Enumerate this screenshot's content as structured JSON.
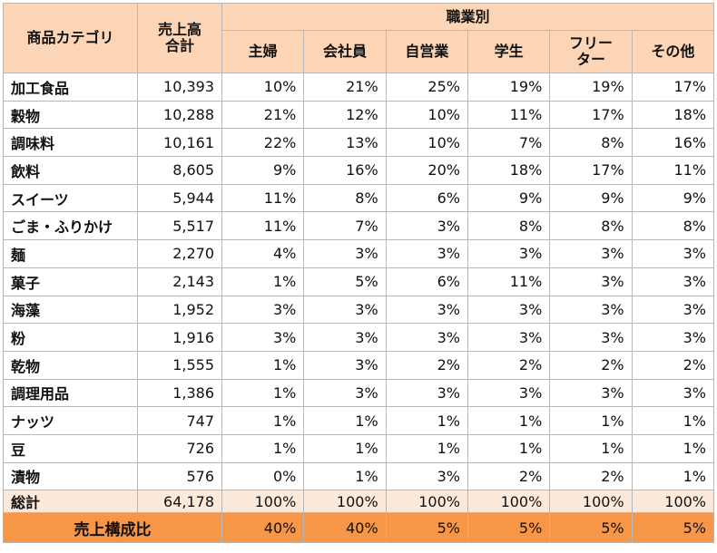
{
  "header": {
    "category_label": "商品カテゴリ",
    "total_label_line1": "売上高",
    "total_label_line2": "合計",
    "group_label": "職業別",
    "jobs": [
      "主婦",
      "会社員",
      "自営業",
      "学生",
      "フリー",
      "その他"
    ],
    "job_freelance_line2": "ター"
  },
  "rows": [
    {
      "category": "加工食品",
      "total": "10,393",
      "values": [
        "10%",
        "21%",
        "25%",
        "19%",
        "19%",
        "17%"
      ]
    },
    {
      "category": "穀物",
      "total": "10,288",
      "values": [
        "21%",
        "12%",
        "10%",
        "11%",
        "17%",
        "18%"
      ]
    },
    {
      "category": "調味料",
      "total": "10,161",
      "values": [
        "22%",
        "13%",
        "10%",
        "7%",
        "8%",
        "16%"
      ]
    },
    {
      "category": "飲料",
      "total": "8,605",
      "values": [
        "9%",
        "16%",
        "20%",
        "18%",
        "17%",
        "11%"
      ]
    },
    {
      "category": "スイーツ",
      "total": "5,944",
      "values": [
        "11%",
        "8%",
        "6%",
        "9%",
        "9%",
        "9%"
      ]
    },
    {
      "category": "ごま・ふりかけ",
      "total": "5,517",
      "values": [
        "11%",
        "7%",
        "3%",
        "8%",
        "8%",
        "8%"
      ]
    },
    {
      "category": "麺",
      "total": "2,270",
      "values": [
        "4%",
        "3%",
        "3%",
        "3%",
        "3%",
        "3%"
      ]
    },
    {
      "category": "菓子",
      "total": "2,143",
      "values": [
        "1%",
        "5%",
        "6%",
        "11%",
        "3%",
        "3%"
      ]
    },
    {
      "category": "海藻",
      "total": "1,952",
      "values": [
        "3%",
        "3%",
        "3%",
        "3%",
        "3%",
        "3%"
      ]
    },
    {
      "category": "粉",
      "total": "1,916",
      "values": [
        "3%",
        "3%",
        "3%",
        "3%",
        "3%",
        "3%"
      ]
    },
    {
      "category": "乾物",
      "total": "1,555",
      "values": [
        "1%",
        "3%",
        "2%",
        "2%",
        "2%",
        "2%"
      ]
    },
    {
      "category": "調理用品",
      "total": "1,386",
      "values": [
        "1%",
        "3%",
        "3%",
        "3%",
        "3%",
        "3%"
      ]
    },
    {
      "category": "ナッツ",
      "total": "747",
      "values": [
        "1%",
        "1%",
        "1%",
        "1%",
        "1%",
        "1%"
      ]
    },
    {
      "category": "豆",
      "total": "726",
      "values": [
        "1%",
        "1%",
        "1%",
        "1%",
        "1%",
        "1%"
      ]
    },
    {
      "category": "漬物",
      "total": "576",
      "values": [
        "0%",
        "1%",
        "3%",
        "2%",
        "2%",
        "1%"
      ]
    }
  ],
  "total_row": {
    "label": "総計",
    "total": "64,178",
    "values": [
      "100%",
      "100%",
      "100%",
      "100%",
      "100%",
      "100%"
    ]
  },
  "ratio_row": {
    "label": "売上構成比",
    "values": [
      "40%",
      "40%",
      "5%",
      "5%",
      "5%",
      "5%"
    ]
  },
  "colors": {
    "header_bg": "#fbd5b5",
    "total_bg": "#fde9d9",
    "ratio_bg": "#f79646",
    "border": "#b7b7b7"
  }
}
